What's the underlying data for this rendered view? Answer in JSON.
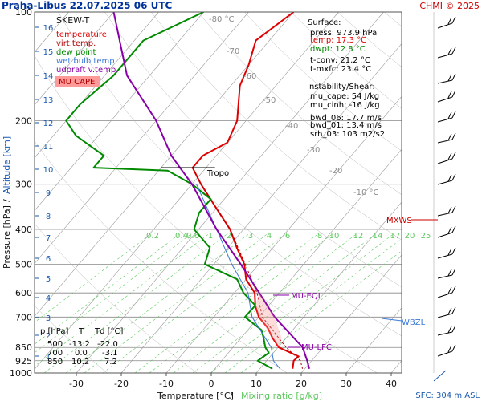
{
  "header": {
    "title": "Praha-Libus   22.07.2025 06 UTC",
    "credit": "CHMI © 2025"
  },
  "legend": {
    "title": "SKEW-T",
    "items": [
      {
        "label": "temperature",
        "color": "#e00000"
      },
      {
        "label": "virt.temp.",
        "color": "#b00000"
      },
      {
        "label": "dew point",
        "color": "#008a00"
      },
      {
        "label": "wet bulb temp.",
        "color": "#3a78d8"
      },
      {
        "label": "udpraft v.temp.",
        "color": "#8a00a8"
      }
    ],
    "mu_cape_label": "MU CAPE"
  },
  "surface": {
    "title": "Surface:",
    "lines": [
      {
        "text": "press: 973.9 hPa",
        "color": "#000000"
      },
      {
        "text": "temp: 17.3 °C",
        "color": "#e00000"
      },
      {
        "text": "dwpt: 12.8 °C",
        "color": "#008a00"
      },
      {
        "text": "t-conv: 21.2 °C",
        "color": "#000000"
      },
      {
        "text": "t-mxfc: 23.4 °C",
        "color": "#000000"
      }
    ]
  },
  "instability": {
    "title": "Instability/Shear:",
    "lines": [
      "mu_cape: 54 J/kg",
      "mu_cinh: -16 J/kg",
      "",
      "bwd_06: 17.7 m/s",
      "bwd_01: 13.4 m/s",
      "srh_03: 103 m2/s2"
    ]
  },
  "table": {
    "header": [
      "p [hPa]",
      "T",
      "Td [°C]"
    ],
    "rows": [
      [
        "500",
        "-13.2",
        "-22.0"
      ],
      [
        "700",
        "0.0",
        "-3.1"
      ],
      [
        "850",
        "10.2",
        "7.2"
      ]
    ]
  },
  "axes": {
    "ylabel": "Pressure [hPa]",
    "ylabel_sep": "/",
    "ylabel_alt": "Altitude [km]",
    "xlabel": "Temperature [°C]",
    "xlabel_sep": "/",
    "xlabel_mix": "Mixing ratio [g/kg]"
  },
  "annotations": {
    "tropo": "Tropo",
    "mu_eql": "MU-EQL",
    "mu_lfc": "MU-LFC",
    "mxws": "MXWS",
    "wbzl": "WBZL",
    "sfc": "SFC: 304 m ASL"
  },
  "colors": {
    "temperature": "#e00000",
    "virt_temp": "#b00000",
    "dew_point": "#008a00",
    "wet_bulb": "#3a78d8",
    "parcel": "#8a00a8",
    "mixing": "#5cc85c",
    "isobar": "#888888",
    "isotherm": "#9a9a9a",
    "altitude_axis": "#1a5ab0",
    "title": "#003399",
    "credit": "#cc0000"
  },
  "chart_data": {
    "type": "skew-t",
    "title": "Praha-Libus   22.07.2025 06 UTC",
    "xlabel": "Temperature [°C] / Mixing ratio [g/kg]",
    "ylabel": "Pressure [hPa] / Altitude [km]",
    "xlim": [
      -35,
      45
    ],
    "ylim": [
      1000,
      100
    ],
    "x_ticks": [
      -30,
      -20,
      -10,
      0,
      10,
      20,
      30,
      40
    ],
    "y_ticks": [
      1000,
      925,
      850,
      700,
      600,
      500,
      400,
      300,
      200,
      100
    ],
    "altitude_ticks_km": [
      1,
      2,
      3,
      4,
      5,
      6,
      7,
      8,
      9,
      10,
      11,
      12,
      13,
      14,
      15,
      16
    ],
    "isotherm_labels": [
      "-80 °C",
      "-70",
      "-60",
      "-50",
      "-40",
      "-30",
      "-20",
      "-10 °C"
    ],
    "mixing_ratio_labels": [
      "0.2",
      "0.4",
      "0.6",
      "1",
      "2",
      "3",
      "4",
      "6",
      "8",
      "10",
      "12",
      "14",
      "17",
      "20",
      "25"
    ],
    "series": [
      {
        "name": "temperature",
        "points": [
          [
            973.9,
            17.3
          ],
          [
            925,
            16
          ],
          [
            900,
            16.3
          ],
          [
            850,
            10.2
          ],
          [
            800,
            7
          ],
          [
            750,
            4
          ],
          [
            700,
            0
          ],
          [
            650,
            -3
          ],
          [
            600,
            -5.5
          ],
          [
            550,
            -10
          ],
          [
            500,
            -13.2
          ],
          [
            450,
            -18
          ],
          [
            400,
            -23
          ],
          [
            350,
            -30
          ],
          [
            300,
            -38
          ],
          [
            270,
            -43
          ],
          [
            250,
            -43
          ],
          [
            230,
            -40
          ],
          [
            200,
            -42
          ],
          [
            160,
            -48
          ],
          [
            140,
            -50
          ],
          [
            120,
            -53
          ],
          [
            100,
            -50
          ]
        ]
      },
      {
        "name": "virt.temp.",
        "points": [
          [
            973.9,
            19.5
          ],
          [
            925,
            17.5
          ],
          [
            850,
            11.8
          ],
          [
            700,
            0.8
          ],
          [
            600,
            -5
          ],
          [
            500,
            -13
          ],
          [
            400,
            -23
          ],
          [
            300,
            -38
          ],
          [
            270,
            -43
          ]
        ]
      },
      {
        "name": "dew point",
        "points": [
          [
            973.9,
            12.8
          ],
          [
            925,
            8
          ],
          [
            880,
            9
          ],
          [
            850,
            7.2
          ],
          [
            800,
            5
          ],
          [
            760,
            3
          ],
          [
            700,
            -3.1
          ],
          [
            650,
            -3
          ],
          [
            600,
            -8
          ],
          [
            550,
            -12
          ],
          [
            500,
            -22
          ],
          [
            450,
            -24
          ],
          [
            400,
            -31
          ],
          [
            360,
            -33
          ],
          [
            330,
            -33
          ],
          [
            300,
            -40
          ],
          [
            275,
            -48
          ],
          [
            270,
            -65
          ],
          [
            250,
            -65
          ],
          [
            220,
            -75
          ],
          [
            200,
            -80
          ],
          [
            180,
            -80
          ],
          [
            150,
            -78
          ],
          [
            120,
            -78
          ],
          [
            100,
            -70
          ]
        ]
      },
      {
        "name": "wet bulb temp.",
        "points": [
          [
            973.9,
            14.5
          ],
          [
            925,
            11.5
          ],
          [
            850,
            8.5
          ],
          [
            700,
            -1.5
          ],
          [
            600,
            -7
          ],
          [
            500,
            -16
          ],
          [
            400,
            -26
          ],
          [
            300,
            -39
          ]
        ]
      },
      {
        "name": "udpraft v.temp.",
        "points": [
          [
            973.9,
            21
          ],
          [
            925,
            19
          ],
          [
            850,
            15.5
          ],
          [
            700,
            3.5
          ],
          [
            600,
            -4.5
          ],
          [
            500,
            -14
          ],
          [
            400,
            -26
          ],
          [
            300,
            -40
          ],
          [
            250,
            -50
          ],
          [
            200,
            -60
          ],
          [
            150,
            -75
          ],
          [
            100,
            -90
          ]
        ]
      }
    ],
    "annotations": {
      "tropopause_hPa": 270,
      "mu_eql_hPa": 600,
      "mu_lfc_hPa": 855
    },
    "wind_barbs": "right"
  }
}
